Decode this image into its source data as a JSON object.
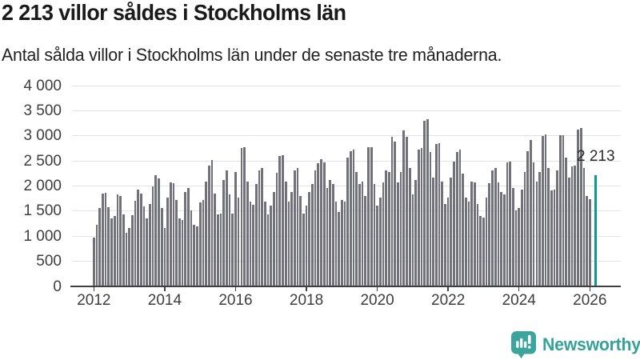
{
  "header": {
    "title": "2 213 villor såldes i Stockholms län",
    "subtitle": "Antal sålda villor i Stockholms län under de senaste tre månaderna."
  },
  "footer": {
    "brand": "Newsworthy",
    "logo_icon": "bar-chart-speech-bubble-icon"
  },
  "colors": {
    "bar": "#71717b",
    "highlight": "#089b91",
    "brand": "#35a19a",
    "grid": "#e3e3e3",
    "axis": "#3f3f44",
    "axis_text": "#3d3d3d",
    "title_text": "#1a1a1a"
  },
  "chart_data": {
    "type": "bar",
    "title": "2 213 villor såldes i Stockholms län",
    "subtitle": "Antal sålda villor i Stockholms län under de senaste tre månaderna.",
    "x_start": "2012-01",
    "x_frequency": "monthly",
    "grid": "horizontal",
    "legend": "none",
    "ylim": [
      0,
      4000
    ],
    "ytick_values": [
      0,
      500,
      1000,
      1500,
      2000,
      2500,
      3000,
      3500,
      4000
    ],
    "ytick_labels": [
      "0",
      "500",
      "1 000",
      "1 500",
      "2 000",
      "2 500",
      "3 000",
      "3 500",
      "4 000"
    ],
    "xtick_labels": [
      "2012",
      "2014",
      "2016",
      "2018",
      "2020",
      "2022",
      "2024",
      "2026"
    ],
    "xtick_month_index": [
      0,
      24,
      48,
      72,
      96,
      120,
      144,
      168
    ],
    "values": [
      975,
      1225,
      1560,
      1845,
      1860,
      1580,
      1350,
      1405,
      1830,
      1795,
      1430,
      1060,
      1165,
      1420,
      1705,
      1930,
      1850,
      1600,
      1350,
      1640,
      2000,
      2210,
      2145,
      1560,
      1165,
      1770,
      2070,
      2060,
      1720,
      1350,
      1320,
      1880,
      1960,
      1510,
      1220,
      1190,
      1670,
      1720,
      2090,
      2410,
      2520,
      1855,
      1430,
      1455,
      2120,
      2310,
      1830,
      1455,
      2280,
      1775,
      2755,
      2780,
      2090,
      1695,
      1620,
      2040,
      2310,
      2360,
      1695,
      1430,
      1615,
      1880,
      2255,
      2600,
      2620,
      2090,
      1695,
      1880,
      2305,
      2360,
      1800,
      1455,
      1615,
      1880,
      2040,
      2305,
      2455,
      2540,
      2475,
      1960,
      2120,
      2040,
      1695,
      1480,
      1720,
      1695,
      2570,
      2700,
      2720,
      2280,
      2040,
      2090,
      1800,
      2765,
      2770,
      2040,
      1615,
      1775,
      2065,
      2305,
      2280,
      2985,
      2890,
      2065,
      2280,
      3110,
      2985,
      2360,
      1825,
      2120,
      2730,
      2755,
      3305,
      3325,
      2675,
      2170,
      2835,
      2850,
      2090,
      1640,
      1775,
      2170,
      2490,
      2685,
      2720,
      2250,
      1775,
      1695,
      2090,
      2065,
      1640,
      1400,
      1375,
      1770,
      2060,
      2305,
      2360,
      2065,
      1880,
      1825,
      2465,
      2490,
      1960,
      1510,
      1560,
      1935,
      2280,
      2700,
      2915,
      2465,
      2090,
      2280,
      2995,
      3020,
      2360,
      1905,
      1935,
      2305,
      3005,
      3005,
      2570,
      2170,
      2385,
      2410,
      3130,
      3150,
      2360,
      1800,
      1745
    ],
    "highlight": {
      "label": "2 213",
      "value": 2213,
      "gap_before": true
    }
  }
}
